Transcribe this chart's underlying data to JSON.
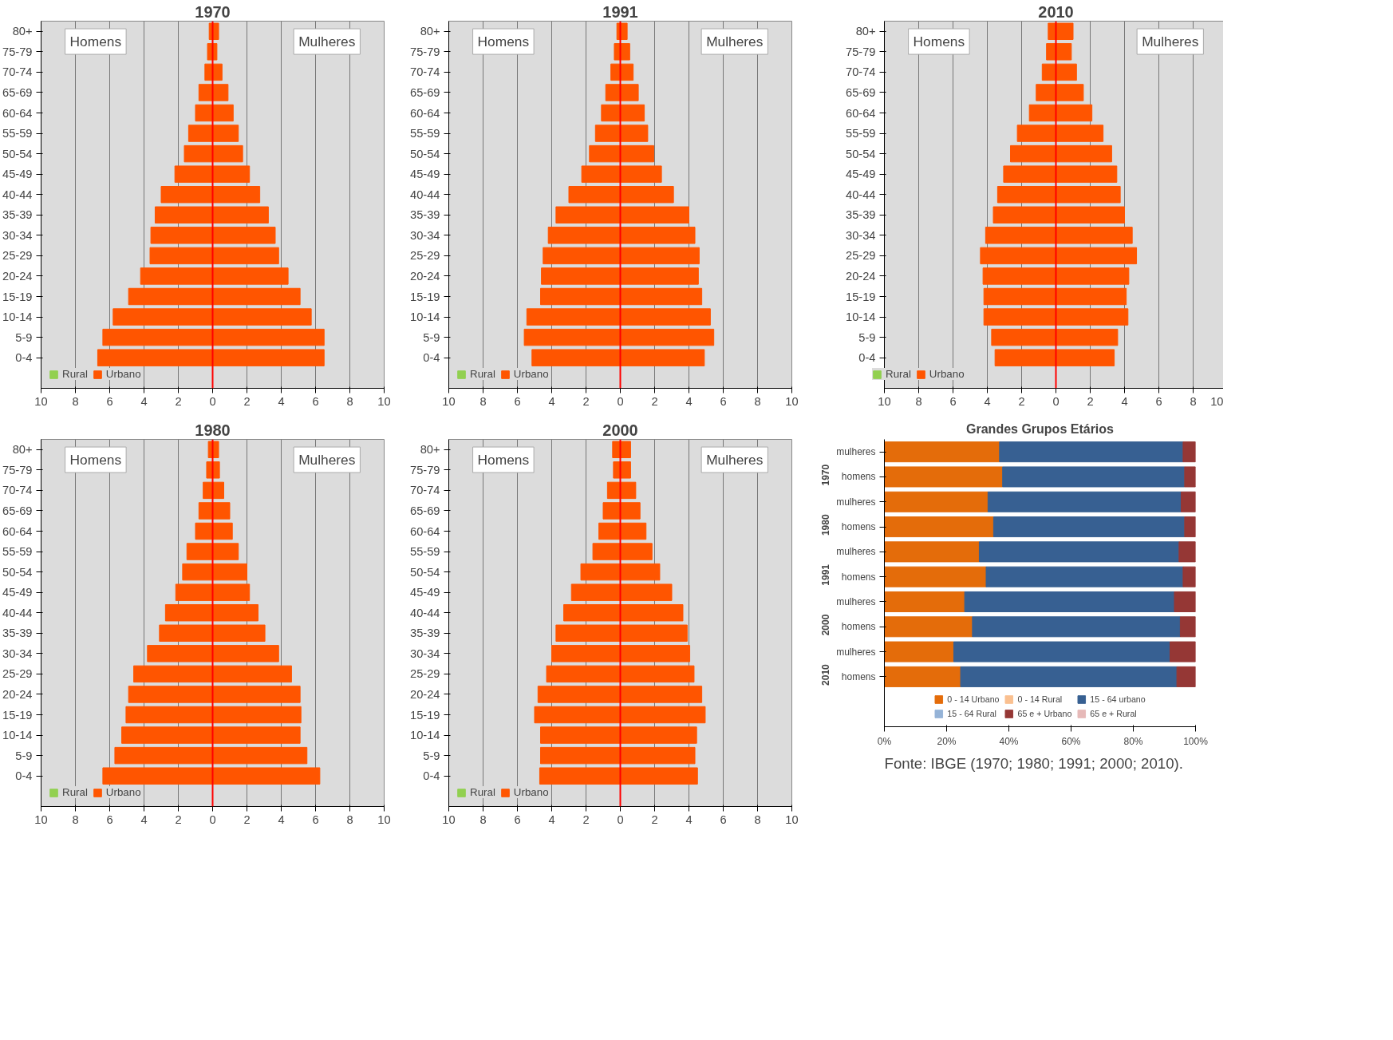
{
  "chart_data": [
    {
      "type": "bar",
      "orientation": "horizontal",
      "stacked": true,
      "title": "1970",
      "categories": [
        "80+",
        "75-79",
        "70-74",
        "65-69",
        "60-64",
        "55-59",
        "50-54",
        "45-49",
        "40-44",
        "35-39",
        "30-34",
        "25-29",
        "20-24",
        "15-19",
        "10-14",
        "5-9",
        "0-4"
      ],
      "series": [
        {
          "name": "Rural",
          "color": "#92d050",
          "values": [
            null,
            null,
            null,
            null,
            null,
            null,
            null,
            null,
            null,
            null,
            null,
            null,
            null,
            null,
            null,
            null,
            null
          ]
        },
        {
          "name": "Urbano",
          "color": "#ff5500",
          "values": [
            0.35,
            0.25,
            0.55,
            0.9,
            1.2,
            1.5,
            1.75,
            2.15,
            2.75,
            3.25,
            3.65,
            3.85,
            4.4,
            5.1,
            5.75,
            6.5,
            6.5
          ]
        },
        {
          "color": "#ff5500",
          "values": [
            -0.2,
            -0.3,
            -0.45,
            -0.8,
            -1.0,
            -1.4,
            -1.65,
            -2.2,
            -3.0,
            -3.35,
            -3.6,
            -3.65,
            -4.2,
            -4.9,
            -5.8,
            -6.4,
            -6.7
          ]
        }
      ],
      "xlim": [
        -10,
        10
      ],
      "xticks": [
        {
          "value": -10,
          "label": "10"
        },
        {
          "value": -8,
          "label": "8"
        },
        {
          "value": -6,
          "label": "6"
        },
        {
          "value": -4,
          "label": "4"
        },
        {
          "value": -2,
          "label": "2"
        },
        0,
        2,
        4,
        6,
        8,
        10
      ],
      "grid": "x",
      "legend": "bottom left",
      "ref_lines": [
        {
          "axis": "x",
          "value": 0,
          "color": "#ff0000"
        }
      ],
      "annotations": [
        "Homens",
        "Mulheres"
      ]
    },
    {
      "type": "bar",
      "orientation": "horizontal",
      "stacked": true,
      "title": "1991",
      "categories": [
        "80+",
        "75-79",
        "70-74",
        "65-69",
        "60-64",
        "55-59",
        "50-54",
        "45-49",
        "40-44",
        "35-39",
        "30-34",
        "25-29",
        "20-24",
        "15-19",
        "10-14",
        "5-9",
        "0-4"
      ],
      "series": [
        {
          "name": "Rural",
          "color": "#92d050",
          "values": [
            null,
            null,
            null,
            null,
            null,
            null,
            null,
            null,
            null,
            null,
            null,
            null,
            null,
            null,
            null,
            null,
            null
          ]
        },
        {
          "name": "Urbano",
          "color": "#ff5500",
          "values": [
            0.4,
            0.55,
            0.75,
            1.05,
            1.4,
            1.6,
            1.95,
            2.4,
            3.1,
            4.0,
            4.35,
            4.6,
            4.55,
            4.75,
            5.25,
            5.45,
            4.9
          ]
        },
        {
          "color": "#ff5500",
          "values": [
            -0.2,
            -0.35,
            -0.55,
            -0.85,
            -1.1,
            -1.45,
            -1.8,
            -2.25,
            -3.0,
            -3.75,
            -4.2,
            -4.5,
            -4.6,
            -4.65,
            -5.45,
            -5.6,
            -5.15
          ]
        }
      ],
      "xlim": [
        -10,
        10
      ],
      "xticks": [
        {
          "value": -10,
          "label": "10"
        },
        {
          "value": -8,
          "label": "8"
        },
        {
          "value": -6,
          "label": "6"
        },
        {
          "value": -4,
          "label": "4"
        },
        {
          "value": -2,
          "label": "2"
        },
        0,
        2,
        4,
        6,
        8,
        10
      ],
      "grid": "x",
      "legend": "bottom left",
      "ref_lines": [
        {
          "axis": "x",
          "value": 0,
          "color": "#ff0000"
        }
      ],
      "annotations": [
        "Homens",
        "Mulheres"
      ]
    },
    {
      "type": "bar",
      "orientation": "horizontal",
      "stacked": true,
      "title": "2010",
      "categories": [
        "80+",
        "75-79",
        "70-74",
        "65-69",
        "60-64",
        "55-59",
        "50-54",
        "45-49",
        "40-44",
        "35-39",
        "30-34",
        "25-29",
        "20-24",
        "15-19",
        "10-14",
        "5-9",
        "0-4"
      ],
      "series": [
        {
          "name": "Rural",
          "color": "#92d050",
          "values": [
            null,
            null,
            null,
            null,
            null,
            null,
            null,
            null,
            null,
            null,
            null,
            null,
            null,
            null,
            null,
            null,
            null
          ]
        },
        {
          "name": "Urbano",
          "color": "#ff5500",
          "values": [
            1.0,
            0.9,
            1.2,
            1.6,
            2.1,
            2.75,
            3.25,
            3.55,
            3.75,
            4.0,
            4.45,
            4.7,
            4.25,
            4.1,
            4.2,
            3.6,
            3.4
          ]
        },
        {
          "color": "#ff5500",
          "values": [
            -0.45,
            -0.55,
            -0.8,
            -1.15,
            -1.55,
            -2.25,
            -2.65,
            -3.05,
            -3.4,
            -3.65,
            -4.1,
            -4.4,
            -4.25,
            -4.2,
            -4.2,
            -3.75,
            -3.55
          ]
        }
      ],
      "xlim": [
        -10,
        10
      ],
      "xticks": [
        {
          "value": -10,
          "label": "10"
        },
        {
          "value": -8,
          "label": "8"
        },
        {
          "value": -6,
          "label": "6"
        },
        {
          "value": -4,
          "label": "4"
        },
        {
          "value": -2,
          "label": "2"
        },
        0,
        2,
        4,
        6,
        8,
        10
      ],
      "grid": "x",
      "legend": "bottom left",
      "ref_lines": [
        {
          "axis": "x",
          "value": 0,
          "color": "#ff0000"
        }
      ],
      "annotations": [
        "Homens",
        "Mulheres"
      ]
    },
    {
      "type": "bar",
      "orientation": "horizontal",
      "stacked": true,
      "title": "1980",
      "categories": [
        "80+",
        "75-79",
        "70-74",
        "65-69",
        "60-64",
        "55-59",
        "50-54",
        "45-49",
        "40-44",
        "35-39",
        "30-34",
        "25-29",
        "20-24",
        "15-19",
        "10-14",
        "5-9",
        "0-4"
      ],
      "series": [
        {
          "name": "Rural",
          "color": "#92d050",
          "values": [
            null,
            null,
            null,
            null,
            null,
            null,
            null,
            null,
            null,
            null,
            null,
            null,
            null,
            null,
            null,
            null,
            null
          ]
        },
        {
          "name": "Urbano",
          "color": "#ff5500",
          "values": [
            0.35,
            0.4,
            0.65,
            1.0,
            1.15,
            1.5,
            2.0,
            2.15,
            2.65,
            3.05,
            3.85,
            4.6,
            5.1,
            5.15,
            5.1,
            5.5,
            6.25
          ]
        },
        {
          "color": "#ff5500",
          "values": [
            -0.25,
            -0.35,
            -0.55,
            -0.8,
            -1.0,
            -1.5,
            -1.75,
            -2.15,
            -2.75,
            -3.1,
            -3.8,
            -4.6,
            -4.9,
            -5.05,
            -5.3,
            -5.7,
            -6.4
          ]
        }
      ],
      "xlim": [
        -10,
        10
      ],
      "xticks": [
        {
          "value": -10,
          "label": "10"
        },
        {
          "value": -8,
          "label": "8"
        },
        {
          "value": -6,
          "label": "6"
        },
        {
          "value": -4,
          "label": "4"
        },
        {
          "value": -2,
          "label": "2"
        },
        0,
        2,
        4,
        6,
        8,
        10
      ],
      "grid": "x",
      "legend": "bottom left",
      "ref_lines": [
        {
          "axis": "x",
          "value": 0,
          "color": "#ff0000"
        }
      ],
      "annotations": [
        "Homens",
        "Mulheres"
      ]
    },
    {
      "type": "bar",
      "orientation": "horizontal",
      "stacked": true,
      "title": "2000",
      "categories": [
        "80+",
        "75-79",
        "70-74",
        "65-69",
        "60-64",
        "55-59",
        "50-54",
        "45-49",
        "40-44",
        "35-39",
        "30-34",
        "25-29",
        "20-24",
        "15-19",
        "10-14",
        "5-9",
        "0-4"
      ],
      "series": [
        {
          "name": "Rural",
          "color": "#92d050",
          "values": [
            null,
            null,
            null,
            null,
            null,
            null,
            null,
            null,
            null,
            null,
            null,
            null,
            null,
            null,
            null,
            null,
            null
          ]
        },
        {
          "name": "Urbano",
          "color": "#ff5500",
          "values": [
            0.6,
            0.6,
            0.9,
            1.15,
            1.5,
            1.85,
            2.3,
            3.0,
            3.65,
            3.9,
            4.05,
            4.3,
            4.75,
            4.95,
            4.45,
            4.35,
            4.5
          ]
        },
        {
          "color": "#ff5500",
          "values": [
            -0.45,
            -0.4,
            -0.75,
            -1.0,
            -1.25,
            -1.6,
            -2.3,
            -2.85,
            -3.3,
            -3.75,
            -4.0,
            -4.3,
            -4.8,
            -5.0,
            -4.65,
            -4.65,
            -4.7
          ]
        }
      ],
      "xlim": [
        -10,
        10
      ],
      "xticks": [
        {
          "value": -10,
          "label": "10"
        },
        {
          "value": -8,
          "label": "8"
        },
        {
          "value": -6,
          "label": "6"
        },
        {
          "value": -4,
          "label": "4"
        },
        {
          "value": -2,
          "label": "2"
        },
        0,
        2,
        4,
        6,
        8,
        10
      ],
      "grid": "x",
      "legend": "bottom left",
      "ref_lines": [
        {
          "axis": "x",
          "value": 0,
          "color": "#ff0000"
        }
      ],
      "annotations": [
        "Homens",
        "Mulheres"
      ]
    },
    {
      "type": "bar",
      "orientation": "horizontal",
      "stacked": true,
      "title": "Grandes Grupos Etários",
      "categories": [
        "mulheres",
        "homens",
        "mulheres",
        "homens",
        "mulheres",
        "homens",
        "mulheres",
        "homens",
        "mulheres",
        "homens"
      ],
      "series": [
        {
          "name": "0 - 14 Urbano",
          "color": "#e46c0a",
          "values": [
            37,
            38,
            33.3,
            35.1,
            30.5,
            32.7,
            25.8,
            28.3,
            22.3,
            24.5
          ]
        },
        {
          "name": "0 - 14 Rural",
          "color": "#fac090",
          "values": [
            null,
            null,
            null,
            null,
            null,
            null,
            null,
            null,
            null,
            null
          ]
        },
        {
          "name": "15 - 64 urbano",
          "color": "#376092",
          "values": [
            59,
            58.5,
            62.1,
            61.4,
            64.2,
            63.3,
            67.4,
            66.8,
            69.5,
            69.5
          ]
        },
        {
          "name": "15 - 64 Rural",
          "color": "#95b3d7",
          "values": [
            null,
            null,
            null,
            null,
            null,
            null,
            null,
            null,
            null,
            null
          ]
        },
        {
          "name": "65 e + Urbano",
          "color": "#953735",
          "values": [
            4,
            3.5,
            4.6,
            3.5,
            5.3,
            4,
            6.8,
            4.9,
            8.2,
            6
          ]
        },
        {
          "name": "65 e + Rural",
          "color": "#e6b9b8",
          "values": [
            null,
            null,
            null,
            null,
            null,
            null,
            null,
            null,
            null,
            null
          ]
        }
      ],
      "xlim": [
        0,
        100
      ],
      "xticks": [
        {
          "value": 0,
          "label": "0%"
        },
        {
          "value": 20,
          "label": "20%"
        },
        {
          "value": 40,
          "label": "40%"
        },
        {
          "value": 60,
          "label": "60%"
        },
        {
          "value": 80,
          "label": "80%"
        },
        {
          "value": 100,
          "label": "100%"
        }
      ],
      "legend": "bottom",
      "annotations": [
        "1970",
        "1980",
        "1991",
        "2000",
        "2010",
        "Fonte: IBGE (1970; 1980; 1991; 2000; 2010)."
      ]
    }
  ]
}
